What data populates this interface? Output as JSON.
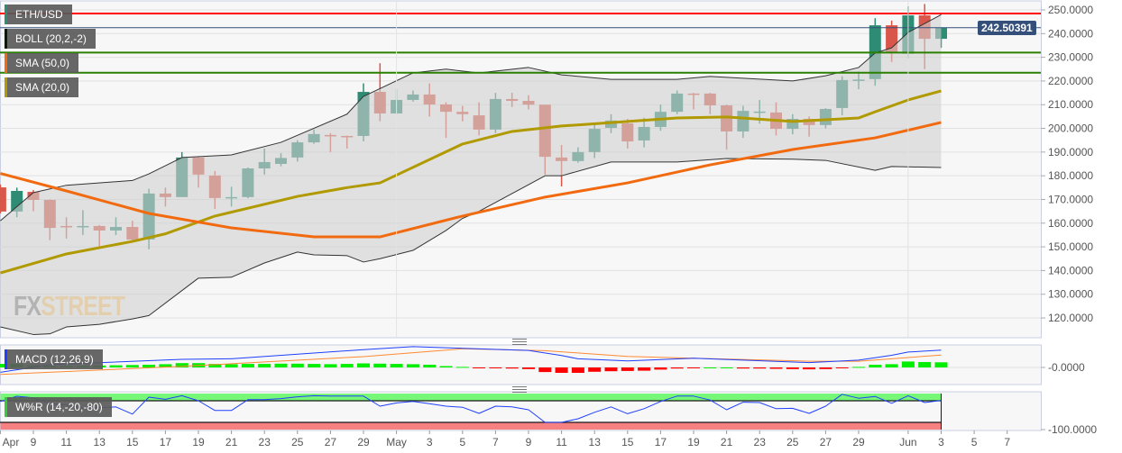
{
  "instrument": "ETH/USD",
  "legends": {
    "main": [
      {
        "label": "ETH/USD",
        "color": "#2e8b74"
      },
      {
        "label": "BOLL (20,2,-2)",
        "color": "#0a1a0a"
      },
      {
        "label": "SMA (50,0)",
        "color": "#f26a0f"
      },
      {
        "label": "SMA (20,0)",
        "color": "#b09a00"
      }
    ],
    "macd": {
      "label": "MACD (12,26,9)",
      "color": "#1f3fff"
    },
    "wr": {
      "label": "W%R (14,-20,-80)",
      "color": "#33cc33"
    }
  },
  "current_price": "242.50391",
  "watermark": {
    "part1": "FX",
    "part2": "STREET"
  },
  "colors": {
    "up": "#2e8b74",
    "down": "#d9574a",
    "band_fill": "#d0d0d0",
    "sma50": "#f26a0f",
    "sma20": "#b09a00",
    "resistance": "#ff0000",
    "support": "#2a8000",
    "price_line": "#34507a",
    "macd_line": "#1f3fff",
    "signal_line": "#ff8a33",
    "hist_up": "#00ee00",
    "hist_down": "#ff0000"
  },
  "chart_data": [
    {
      "type": "candlestick",
      "title": "ETH/USD",
      "ylim": [
        113,
        253
      ],
      "y_ticks": [
        "250.0000",
        "240.0000",
        "230.0000",
        "220.0000",
        "210.0000",
        "200.0000",
        "190.0000",
        "180.0000",
        "170.0000",
        "160.0000",
        "150.0000",
        "140.0000",
        "130.0000",
        "120.0000"
      ],
      "x_ticks": [
        [
          "Apr 7",
          "Apr"
        ],
        [
          "Apr 9",
          "9"
        ],
        [
          "Apr 11",
          "11"
        ],
        [
          "Apr 13",
          "13"
        ],
        [
          "Apr 15",
          "15"
        ],
        [
          "Apr 17",
          "17"
        ],
        [
          "Apr 19",
          "19"
        ],
        [
          "Apr 21",
          "21"
        ],
        [
          "Apr 23",
          "23"
        ],
        [
          "Apr 25",
          "25"
        ],
        [
          "Apr 27",
          "27"
        ],
        [
          "Apr 29",
          "29"
        ],
        [
          "May 1",
          "May"
        ],
        [
          "May 3",
          "3"
        ],
        [
          "May 5",
          "5"
        ],
        [
          "May 7",
          "7"
        ],
        [
          "May 9",
          "9"
        ],
        [
          "May 11",
          "11"
        ],
        [
          "May 13",
          "13"
        ],
        [
          "May 15",
          "15"
        ],
        [
          "May 17",
          "17"
        ],
        [
          "May 19",
          "19"
        ],
        [
          "May 21",
          "21"
        ],
        [
          "May 23",
          "23"
        ],
        [
          "May 25",
          "25"
        ],
        [
          "May 27",
          "27"
        ],
        [
          "May 29",
          "29"
        ],
        [
          "Jun 1",
          "Jun"
        ],
        [
          "Jun 3",
          "3"
        ],
        [
          "Jun 5",
          "5"
        ],
        [
          "Jun 7",
          "7"
        ]
      ],
      "candles_columns": [
        "date",
        "open",
        "high",
        "low",
        "close"
      ],
      "candles": [
        [
          "Apr 7",
          175.1,
          176.3,
          164.1,
          164.9
        ],
        [
          "Apr 8",
          164.9,
          175,
          162.5,
          173.6
        ],
        [
          "Apr 9",
          173.2,
          174,
          165,
          169.8
        ],
        [
          "Apr 10",
          169.8,
          170,
          152.8,
          158
        ],
        [
          "Apr 11",
          158.8,
          162.5,
          153.5,
          158.6
        ],
        [
          "Apr 12",
          158.6,
          165.5,
          155,
          158.8
        ],
        [
          "Apr 13",
          158.8,
          159.2,
          150,
          156.9
        ],
        [
          "Apr 14",
          156.9,
          162.5,
          155,
          158.4
        ],
        [
          "Apr 15",
          158.4,
          161,
          152,
          153.1
        ],
        [
          "Apr 16",
          153.1,
          174.5,
          149,
          172.5
        ],
        [
          "Apr 17",
          172.5,
          175,
          167,
          171
        ],
        [
          "Apr 18",
          171,
          190,
          171,
          187.7
        ],
        [
          "Apr 19",
          187.7,
          188,
          175,
          180.5
        ],
        [
          "Apr 20",
          180.1,
          182,
          166,
          170.6
        ],
        [
          "Apr 21",
          170.6,
          175.4,
          167,
          171
        ],
        [
          "Apr 22",
          171,
          183.5,
          170.5,
          183.1
        ],
        [
          "Apr 23",
          183.1,
          191.5,
          180.5,
          185.8
        ],
        [
          "Apr 24",
          185,
          189.5,
          184,
          187.5
        ],
        [
          "Apr 25",
          187.7,
          195,
          186,
          194.1
        ],
        [
          "Apr 26",
          194.1,
          199.5,
          193.5,
          197.6
        ],
        [
          "Apr 27",
          197.2,
          198,
          190,
          196.8
        ],
        [
          "Apr 28",
          196.8,
          196.9,
          191.5,
          196.4
        ],
        [
          "Apr 29",
          196.8,
          219,
          194.5,
          215.4
        ],
        [
          "Apr 30",
          215.4,
          227.5,
          203,
          206.3
        ],
        [
          "May 1",
          206.3,
          216.5,
          206,
          212
        ],
        [
          "May 2",
          212,
          216,
          211.3,
          214.3
        ],
        [
          "May 3",
          214.3,
          219,
          205,
          210.1
        ],
        [
          "May 4",
          210.1,
          211,
          196,
          207
        ],
        [
          "May 5",
          207,
          209.5,
          203,
          206
        ],
        [
          "May 6",
          205.5,
          211,
          197,
          199.5
        ],
        [
          "May 7",
          199.5,
          215,
          198,
          212.4
        ],
        [
          "May 8",
          212.4,
          215,
          209,
          211.6
        ],
        [
          "May 9",
          211.6,
          214,
          208,
          210
        ],
        [
          "May 10",
          210,
          210,
          180.5,
          188
        ],
        [
          "May 11",
          187.7,
          193,
          175.5,
          186.2
        ],
        [
          "May 12",
          186.2,
          192,
          185.5,
          190
        ],
        [
          "May 13",
          190,
          202,
          187.5,
          199.8
        ],
        [
          "May 14",
          200.2,
          206,
          198,
          203.3
        ],
        [
          "May 15",
          202.1,
          204,
          191.5,
          194.5
        ],
        [
          "May 16",
          194.9,
          204.5,
          192,
          200.6
        ],
        [
          "May 17",
          200.6,
          210,
          199,
          207
        ],
        [
          "May 18",
          207,
          216,
          206,
          214.7
        ],
        [
          "May 19",
          214.7,
          215,
          208,
          214.3
        ],
        [
          "May 20",
          214.7,
          215,
          206,
          209.7
        ],
        [
          "May 21",
          209.7,
          210,
          191,
          198.7
        ],
        [
          "May 22",
          198.7,
          209.5,
          196,
          207.4
        ],
        [
          "May 23",
          207,
          212,
          202,
          207.1
        ],
        [
          "May 24",
          206.7,
          211,
          197,
          199.8
        ],
        [
          "May 25",
          199.8,
          206,
          197.5,
          204
        ],
        [
          "May 26",
          204,
          205,
          196.5,
          201.4
        ],
        [
          "May 27",
          201.4,
          208.5,
          200,
          208.2
        ],
        [
          "May 28",
          208.6,
          222,
          205.5,
          220.4
        ],
        [
          "May 29",
          220.4,
          224,
          216.5,
          220.6
        ],
        [
          "May 30",
          220.8,
          246.5,
          218,
          243.5
        ],
        [
          "May 31",
          243.5,
          245.5,
          228,
          231.8
        ],
        [
          "Jun 1",
          231.5,
          251.5,
          229.5,
          247.7
        ],
        [
          "Jun 2",
          247.7,
          252.5,
          225,
          237.8
        ],
        [
          "Jun 3",
          237.8,
          242.5,
          234,
          242.5
        ]
      ],
      "boll_upper": [
        [
          "Apr 7",
          161
        ],
        [
          "Apr 9",
          172.9
        ],
        [
          "Apr 11",
          176
        ],
        [
          "Apr 15",
          178
        ],
        [
          "Apr 16",
          180.8
        ],
        [
          "Apr 18",
          187.7
        ],
        [
          "Apr 21",
          188.8
        ],
        [
          "Apr 24",
          194.1
        ],
        [
          "Apr 28",
          206
        ],
        [
          "Apr 29",
          213.5
        ],
        [
          "May 2",
          223.4
        ],
        [
          "May 4",
          225
        ],
        [
          "May 6",
          223.4
        ],
        [
          "May 9",
          225.7
        ],
        [
          "May 11",
          222.6
        ],
        [
          "May 14",
          220.7
        ],
        [
          "May 18",
          220.7
        ],
        [
          "May 20",
          221.9
        ],
        [
          "May 25",
          220
        ],
        [
          "May 27",
          222.2
        ],
        [
          "May 29",
          225.7
        ],
        [
          "May 30",
          231.8
        ],
        [
          "May 31",
          234
        ],
        [
          "Jun 1",
          240.5
        ],
        [
          "Jun 3",
          248
        ]
      ],
      "boll_lower": [
        [
          "Apr 7",
          116.2
        ],
        [
          "Apr 9",
          113
        ],
        [
          "Apr 10",
          113.3
        ],
        [
          "Apr 11",
          116.2
        ],
        [
          "Apr 13",
          117.3
        ],
        [
          "Apr 15",
          119.6
        ],
        [
          "Apr 16",
          121
        ],
        [
          "Apr 19",
          136.8
        ],
        [
          "Apr 21",
          137.2
        ],
        [
          "Apr 23",
          143.2
        ],
        [
          "Apr 25",
          147.8
        ],
        [
          "Apr 26",
          146.6
        ],
        [
          "Apr 28",
          146.3
        ],
        [
          "Apr 29",
          143.6
        ],
        [
          "Apr 30",
          145
        ],
        [
          "May 2",
          148.5
        ],
        [
          "May 4",
          156.9
        ],
        [
          "May 5",
          162
        ],
        [
          "May 6",
          165
        ],
        [
          "May 8",
          172.5
        ],
        [
          "May 10",
          180
        ],
        [
          "May 11",
          180
        ],
        [
          "May 14",
          185.8
        ],
        [
          "May 18",
          185.8
        ],
        [
          "May 21",
          187.3
        ],
        [
          "May 25",
          187
        ],
        [
          "May 27",
          186.5
        ],
        [
          "May 30",
          182.3
        ],
        [
          "May 31",
          183.9
        ],
        [
          "Jun 3",
          183.5
        ]
      ],
      "sma50": [
        [
          "Apr 7",
          181
        ],
        [
          "Apr 11",
          173.6
        ],
        [
          "Apr 16",
          164.1
        ],
        [
          "Apr 21",
          158
        ],
        [
          "Apr 26",
          154.2
        ],
        [
          "Apr 30",
          154.2
        ],
        [
          "May 5",
          163
        ],
        [
          "May 10",
          171
        ],
        [
          "May 15",
          177
        ],
        [
          "May 20",
          184.6
        ],
        [
          "May 25",
          191.1
        ],
        [
          "May 30",
          196
        ],
        [
          "Jun 3",
          202.5
        ]
      ],
      "sma20": [
        [
          "Apr 7",
          139
        ],
        [
          "Apr 11",
          147
        ],
        [
          "Apr 15",
          152.3
        ],
        [
          "Apr 17",
          155.5
        ],
        [
          "Apr 20",
          163
        ],
        [
          "Apr 25",
          171.3
        ],
        [
          "Apr 28",
          175
        ],
        [
          "Apr 30",
          177
        ],
        [
          "May 5",
          193.4
        ],
        [
          "May 8",
          198.7
        ],
        [
          "May 11",
          201
        ],
        [
          "May 15",
          202.9
        ],
        [
          "May 18",
          204.4
        ],
        [
          "May 21",
          204.8
        ],
        [
          "May 25",
          202.9
        ],
        [
          "May 29",
          204.4
        ],
        [
          "May 30",
          207
        ],
        [
          "Jun 1",
          212
        ],
        [
          "Jun 3",
          215.8
        ]
      ],
      "horizontal_lines": [
        {
          "kind": "resistance",
          "value": 248.5
        },
        {
          "kind": "current-price",
          "value": 242.5
        },
        {
          "kind": "support",
          "value": 232
        },
        {
          "kind": "support",
          "value": 223.5
        }
      ]
    },
    {
      "type": "line",
      "title": "MACD (12,26,9)",
      "y_ticks": [
        "-0.0000"
      ],
      "macd": [
        [
          "Apr 7",
          -1.8
        ],
        [
          "Apr 10",
          1
        ],
        [
          "Apr 18",
          3
        ],
        [
          "Apr 21",
          3.2
        ],
        [
          "Apr 29",
          6.6
        ],
        [
          "May 2",
          7.7
        ],
        [
          "May 5",
          7.1
        ],
        [
          "May 9",
          6.3
        ],
        [
          "May 11",
          4.4
        ],
        [
          "May 12",
          3.2
        ],
        [
          "May 15",
          2.4
        ],
        [
          "May 19",
          3.4
        ],
        [
          "May 22",
          2.7
        ],
        [
          "May 26",
          1.8
        ],
        [
          "May 29",
          2.7
        ],
        [
          "May 31",
          4.5
        ],
        [
          "Jun 1",
          5.7
        ],
        [
          "Jun 3",
          6.4
        ]
      ],
      "signal": [
        [
          "Apr 7",
          -2.6
        ],
        [
          "Apr 18",
          0.4
        ],
        [
          "Apr 29",
          4
        ],
        [
          "May 5",
          6.9
        ],
        [
          "May 10",
          6.2
        ],
        [
          "May 15",
          4.1
        ],
        [
          "May 19",
          3.4
        ],
        [
          "May 26",
          2.3
        ],
        [
          "May 29",
          2.3
        ],
        [
          "Jun 3",
          4.6
        ]
      ],
      "histogram": [
        1.3,
        1.3,
        0.8,
        0.6,
        0.6,
        0.6,
        0.7,
        0.8,
        0.9,
        1.0,
        1.2,
        1.6,
        1.6,
        1.3,
        1.2,
        1.3,
        1.3,
        1.4,
        1.4,
        1.3,
        1.2,
        1.3,
        1.5,
        1.4,
        1.3,
        1.2,
        1.0,
        0.5,
        0.2,
        -0.1,
        -0.3,
        -0.4,
        -0.6,
        -1.7,
        -2.0,
        -2.0,
        -1.6,
        -1.4,
        -1.3,
        -1.2,
        -0.8,
        -0.4,
        -0.1,
        0,
        0,
        -0.4,
        -0.4,
        -0.5,
        -0.6,
        -0.7,
        -0.6,
        -0.2,
        0.2,
        1.0,
        1.2,
        2.2,
        2.0,
        1.9
      ]
    },
    {
      "type": "line",
      "title": "W%R (14,-20,-80)",
      "ylim": [
        -100,
        0
      ],
      "y_ticks": [
        "-100.0000"
      ],
      "levels": [
        -20,
        -80
      ],
      "values": [
        -22,
        -7.5,
        -12,
        -28,
        -32,
        -41,
        -39,
        -37,
        -57,
        -10,
        -16,
        -6,
        -20,
        -47,
        -47,
        -17,
        -17,
        -14,
        -9,
        -6,
        -7,
        -7,
        -7,
        -35,
        -26,
        -22,
        -28,
        -35,
        -38,
        -55,
        -35,
        -37,
        -45,
        -80,
        -80,
        -70,
        -52,
        -37,
        -56,
        -42,
        -22,
        -7,
        -7,
        -18,
        -45,
        -24,
        -25,
        -42,
        -41,
        -55,
        -35,
        -2,
        -13,
        -8,
        -27,
        -6,
        -25,
        -19
      ]
    }
  ]
}
